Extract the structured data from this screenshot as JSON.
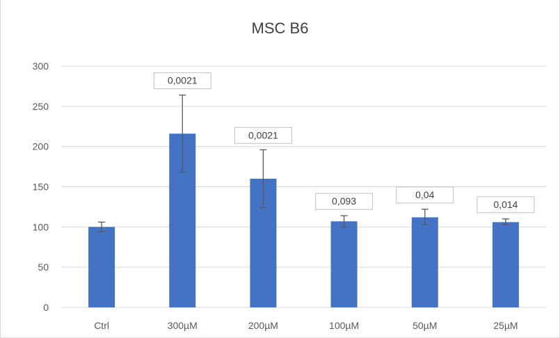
{
  "chart_data": {
    "type": "bar",
    "title": "MSC B6",
    "categories": [
      "Ctrl",
      "300µM",
      "200µM",
      "100µM",
      "50µM",
      "25µM"
    ],
    "values": [
      100,
      216,
      160,
      107,
      112,
      106
    ],
    "error_bars": [
      [
        94,
        106
      ],
      [
        168,
        264
      ],
      [
        124,
        196
      ],
      [
        100,
        114
      ],
      [
        103,
        122
      ],
      [
        103,
        110
      ]
    ],
    "data_labels": [
      "",
      "0,0021",
      "0,0021",
      "0,093",
      "0,04",
      "0,014"
    ],
    "ylim": [
      0,
      300
    ],
    "yticks": [
      0,
      50,
      100,
      150,
      200,
      250,
      300
    ],
    "grid": true,
    "bar_color": "#4472c4",
    "error_color": "#595959"
  }
}
